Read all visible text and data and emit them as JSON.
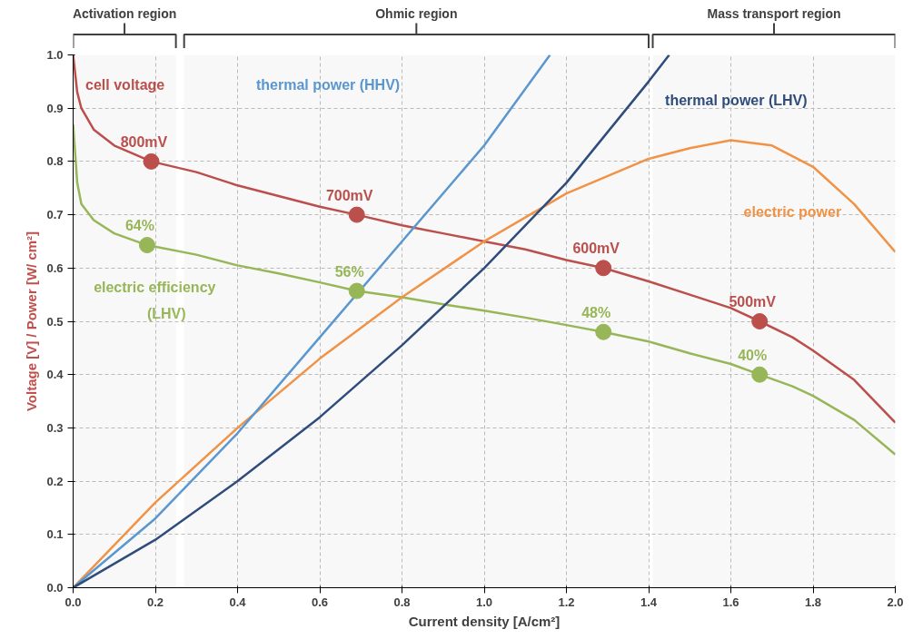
{
  "chart_data": {
    "type": "line",
    "xlabel": "Current density [A/cm²]",
    "ylabel": "Voltage [V] / Power [W/ cm²]",
    "xlim": [
      0,
      2
    ],
    "ylim": [
      0,
      1
    ],
    "xticks": [
      {
        "value": 0,
        "label": "0.0"
      },
      0.2,
      0.4,
      0.6,
      0.8,
      {
        "value": 1,
        "label": "1.0"
      },
      1.2,
      1.4,
      1.6,
      1.8,
      {
        "value": 2,
        "label": "2.0"
      }
    ],
    "yticks": [
      {
        "value": 0,
        "label": "0.0"
      },
      0.1,
      0.2,
      0.3,
      0.4,
      0.5,
      0.6,
      0.7,
      0.8,
      0.9,
      {
        "value": 1,
        "label": "1.0"
      }
    ],
    "grid": true,
    "line_style": "solid",
    "marker": "none",
    "bands": [
      {
        "axis": "x",
        "from": 0,
        "to": 0.25,
        "label": "Activation region"
      },
      {
        "axis": "x",
        "from": 0.27,
        "to": 1.4,
        "label": "Ohmic region"
      },
      {
        "axis": "x",
        "from": 1.41,
        "to": 2.0,
        "label": "Mass transport region"
      }
    ],
    "series": [
      {
        "name": "cell voltage",
        "color": "#c0504d",
        "x": [
          0,
          0.01,
          0.02,
          0.05,
          0.1,
          0.19,
          0.3,
          0.4,
          0.5,
          0.6,
          0.69,
          0.8,
          0.9,
          1.0,
          1.1,
          1.2,
          1.29,
          1.4,
          1.5,
          1.6,
          1.67,
          1.75,
          1.8,
          1.9,
          2.0
        ],
        "values": [
          1.0,
          0.93,
          0.9,
          0.86,
          0.83,
          0.8,
          0.78,
          0.755,
          0.735,
          0.715,
          0.7,
          0.68,
          0.665,
          0.65,
          0.635,
          0.615,
          0.6,
          0.575,
          0.55,
          0.525,
          0.5,
          0.47,
          0.445,
          0.39,
          0.31
        ]
      },
      {
        "name": "electric efficiency (LHV)",
        "color": "#9bbb59",
        "x": [
          0,
          0.01,
          0.02,
          0.05,
          0.1,
          0.18,
          0.3,
          0.4,
          0.5,
          0.6,
          0.69,
          0.8,
          0.9,
          1.0,
          1.1,
          1.2,
          1.29,
          1.4,
          1.5,
          1.6,
          1.67,
          1.75,
          1.8,
          1.9,
          2.0
        ],
        "values": [
          0.87,
          0.76,
          0.72,
          0.69,
          0.665,
          0.643,
          0.625,
          0.605,
          0.59,
          0.573,
          0.557,
          0.545,
          0.532,
          0.52,
          0.507,
          0.493,
          0.48,
          0.462,
          0.44,
          0.42,
          0.4,
          0.378,
          0.36,
          0.315,
          0.25
        ]
      },
      {
        "name": "electric power",
        "color": "#f79646",
        "x": [
          0,
          0.2,
          0.4,
          0.6,
          0.8,
          1.0,
          1.2,
          1.4,
          1.5,
          1.6,
          1.7,
          1.8,
          1.9,
          2.0
        ],
        "values": [
          0,
          0.16,
          0.3,
          0.43,
          0.545,
          0.65,
          0.74,
          0.805,
          0.825,
          0.84,
          0.83,
          0.79,
          0.72,
          0.63
        ]
      },
      {
        "name": "thermal power (HHV)",
        "color": "#5b9bd5",
        "x": [
          0,
          0.2,
          0.4,
          0.6,
          0.8,
          1.0,
          1.16
        ],
        "values": [
          0,
          0.13,
          0.29,
          0.47,
          0.65,
          0.83,
          1.0
        ]
      },
      {
        "name": "thermal power (LHV)",
        "color": "#2e4d7f",
        "x": [
          0,
          0.2,
          0.4,
          0.6,
          0.8,
          1.0,
          1.2,
          1.4,
          1.45
        ],
        "values": [
          0,
          0.09,
          0.2,
          0.32,
          0.455,
          0.6,
          0.76,
          0.95,
          1.0
        ]
      },
      {
        "type": "scatter",
        "marker": "circle",
        "color": "#c0504d",
        "x": [
          0.19,
          0.69,
          1.29,
          1.67
        ],
        "values": [
          0.8,
          0.7,
          0.6,
          0.5
        ]
      },
      {
        "type": "scatter",
        "marker": "circle",
        "color": "#9bbb59",
        "x": [
          0.18,
          0.69,
          1.29,
          1.67
        ],
        "values": [
          0.643,
          0.557,
          0.48,
          0.4
        ]
      }
    ],
    "annotations": [
      {
        "text": "800mV",
        "x": 0.19,
        "y": 0.8
      },
      {
        "text": "700mV",
        "x": 0.69,
        "y": 0.7
      },
      {
        "text": "600mV",
        "x": 1.29,
        "y": 0.6
      },
      {
        "text": "500mV",
        "x": 1.67,
        "y": 0.5
      },
      {
        "text": "64%",
        "x": 0.18,
        "y": 0.643
      },
      {
        "text": "56%",
        "x": 0.69,
        "y": 0.557
      },
      {
        "text": "48%",
        "x": 1.29,
        "y": 0.48
      },
      {
        "text": "40%",
        "x": 1.67,
        "y": 0.4
      }
    ]
  }
}
